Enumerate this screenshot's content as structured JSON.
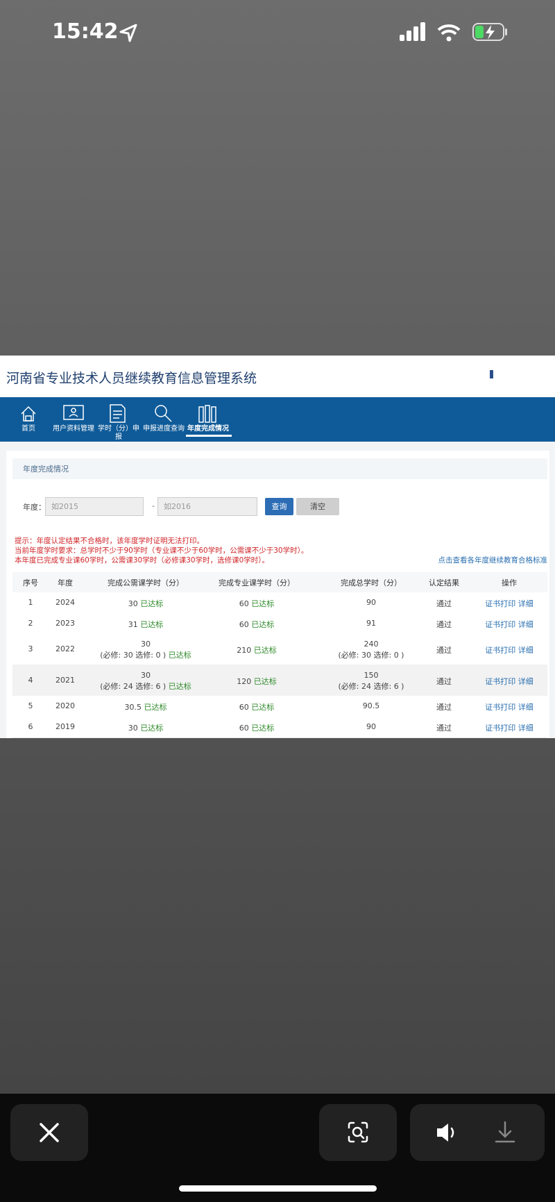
{
  "status": {
    "time": "15:42"
  },
  "header": {
    "title": "河南省专业技术人员继续教育信息管理系统"
  },
  "nav": [
    "首页",
    "用户资料管理",
    "学时（分）申报",
    "申报进度查询",
    "年度完成情况"
  ],
  "panel": {
    "title": "年度完成情况"
  },
  "form": {
    "label": "年度：",
    "from_placeholder": "如2015",
    "separator": "-",
    "to_placeholder": "如2016",
    "search": "查询",
    "clear": "清空"
  },
  "notices": [
    "提示：年度认定结果不合格时，该年度学时证明无法打印。",
    "当前年度学时要求：总学时不少于90学时（专业课不少于60学时，公需课不少于30学时）。",
    "本年度已完成专业课60学时，公需课30学时（必修课30学时，选修课0学时）。"
  ],
  "standard_link": "点击查看各年度继续教育合格标准",
  "table": {
    "headers": [
      "序号",
      "年度",
      "完成公需课学时（分）",
      "完成专业课学时（分）",
      "完成总学时（分）",
      "认定结果",
      "操作"
    ],
    "rows": [
      {
        "no": 1,
        "year": 2024,
        "public": {
          "value": 30,
          "status": "已达标"
        },
        "pro": {
          "value": 60,
          "status": "已达标"
        },
        "total": {
          "value": 90
        },
        "result": "通过",
        "print": "证书打印",
        "detail": "详细"
      },
      {
        "no": 2,
        "year": 2023,
        "public": {
          "value": 31,
          "status": "已达标"
        },
        "pro": {
          "value": 60,
          "status": "已达标"
        },
        "total": {
          "value": 91
        },
        "result": "通过",
        "print": "证书打印",
        "detail": "详细"
      },
      {
        "no": 3,
        "year": 2022,
        "public": {
          "value": 30,
          "breakdown": "(必修: 30 选修: 0 )",
          "status": "已达标"
        },
        "pro": {
          "value": 210,
          "status": "已达标"
        },
        "total": {
          "value": 240,
          "breakdown": "(必修: 30 选修: 0 )"
        },
        "result": "通过",
        "print": "证书打印",
        "detail": "详细"
      },
      {
        "no": 4,
        "year": 2021,
        "public": {
          "value": 30,
          "breakdown": "(必修: 24 选修: 6 )",
          "status": "已达标"
        },
        "pro": {
          "value": 120,
          "status": "已达标"
        },
        "total": {
          "value": 150,
          "breakdown": "(必修: 24 选修: 6 )"
        },
        "result": "通过",
        "print": "证书打印",
        "detail": "详细"
      },
      {
        "no": 5,
        "year": 2020,
        "public": {
          "value": 30.5,
          "status": "已达标"
        },
        "pro": {
          "value": 60,
          "status": "已达标"
        },
        "total": {
          "value": 90.5
        },
        "result": "通过",
        "print": "证书打印",
        "detail": "详细"
      },
      {
        "no": 6,
        "year": 2019,
        "public": {
          "value": 30,
          "status": "已达标"
        },
        "pro": {
          "value": 60,
          "status": "已达标"
        },
        "total": {
          "value": 90
        },
        "result": "通过",
        "print": "证书打印",
        "detail": "详细"
      }
    ]
  }
}
